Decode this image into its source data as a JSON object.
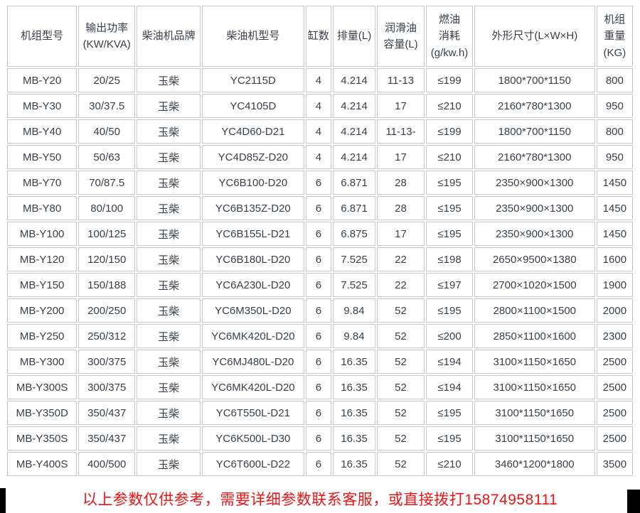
{
  "table": {
    "headers": [
      "机组型号",
      "输出功率\n(KW/KVA)",
      "柴油机品牌",
      "柴油机型号",
      "缸数",
      "排量(L)",
      "润滑油\n容量(L)",
      "燃油\n消耗\n(g/kw.h)",
      "外形尺寸(L×W×H)",
      "机组\n重量\n(KG)"
    ],
    "col_keys": [
      "model",
      "output-power",
      "engine-brand",
      "engine-model",
      "cylinders",
      "displacement",
      "oil-capacity",
      "fuel-consumption",
      "dimensions",
      "weight"
    ],
    "rows": [
      [
        "MB-Y20",
        "20/25",
        "玉柴",
        "YC2115D",
        "4",
        "4.214",
        "11-13",
        "≤199",
        "1800*700*1150",
        "800"
      ],
      [
        "MB-Y30",
        "30/37.5",
        "玉柴",
        "YC4105D",
        "4",
        "4.214",
        "17",
        "≤210",
        "2160*780*1300",
        "950"
      ],
      [
        "MB-Y40",
        "40/50",
        "玉柴",
        "YC4D60-D21",
        "4",
        "4.214",
        "11-13-",
        "≤199",
        "1800*700*1150",
        "800"
      ],
      [
        "MB-Y50",
        "50/63",
        "玉柴",
        "YC4D85Z-D20",
        "4",
        "4.214",
        "17",
        "≤210",
        "2160*780*1300",
        "950"
      ],
      [
        "MB-Y70",
        "70/87.5",
        "玉柴",
        "YC6B100-D20",
        "6",
        "6.871",
        "28",
        "≤195",
        "2350×900×1300",
        "1450"
      ],
      [
        "MB-Y80",
        "80/100",
        "玉柴",
        "YC6B135Z-D20",
        "6",
        "6.871",
        "28",
        "≤195",
        "2350×900×1300",
        "1450"
      ],
      [
        "MB-Y100",
        "100/125",
        "玉柴",
        "YC6B155L-D21",
        "6",
        "6.875",
        "17",
        "≤195",
        "2350×900×1300",
        "1450"
      ],
      [
        "MB-Y120",
        "120/150",
        "玉柴",
        "YC6B180L-D20",
        "6",
        "7.525",
        "22",
        "≤198",
        "2650×9500×1380",
        "1600"
      ],
      [
        "MB-Y150",
        "150/188",
        "玉柴",
        "YC6A230L-D20",
        "6",
        "7.525",
        "22",
        "≤197",
        "2700×1020×1500",
        "1900"
      ],
      [
        "MB-Y200",
        "200/250",
        "玉柴",
        "YC6M350L-D20",
        "6",
        "9.84",
        "52",
        "≤195",
        "2800×1100×1500",
        "2000"
      ],
      [
        "MB-Y250",
        "250/312",
        "玉柴",
        "YC6MK420L-D20",
        "6",
        "9.84",
        "52",
        "≤200",
        "2850×1100×1600",
        "2300"
      ],
      [
        "MB-Y300",
        "300/375",
        "玉柴",
        "YC6MJ480L-D20",
        "6",
        "16.35",
        "52",
        "≤194",
        "3100×1150×1650",
        "2500"
      ],
      [
        "MB-Y300S",
        "300/375",
        "玉柴",
        "YC6MK420L-D20",
        "6",
        "16.35",
        "52",
        "≤194",
        "3100×1150×1650",
        "2500"
      ],
      [
        "MB-Y350D",
        "350/437",
        "玉柴",
        "YC6T550L-D21",
        "6",
        "16.35",
        "52",
        "≤195",
        "3100*1150*1650",
        "2500"
      ],
      [
        "MB-Y350S",
        "350/437",
        "玉柴",
        "YC6K500L-D30",
        "6",
        "16.35",
        "52",
        "≤195",
        "3100*1150*1650",
        "2500"
      ],
      [
        "MB-Y400S",
        "400/500",
        "玉柴",
        "YC6T600L-D22",
        "6",
        "16.35",
        "52",
        "≤210",
        "3460*1200*1800",
        "3500"
      ]
    ]
  },
  "footer": {
    "notice": "以上参数仅供参考，需要详细参数联系客服，或直接拨打15874958111"
  },
  "colors": {
    "border": "#c8c8c8",
    "text": "#39404b",
    "notice": "#ee1414",
    "corner_mark": "#000000"
  }
}
